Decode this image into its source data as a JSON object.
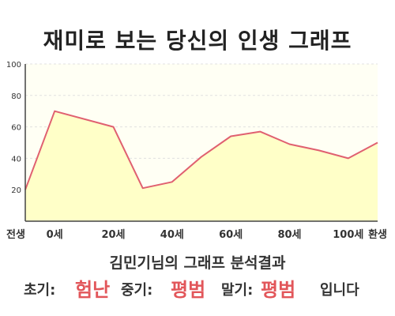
{
  "title": "재미로 보는 당신의 인생 그래프",
  "chart_data": {
    "type": "area",
    "x": [
      "전생",
      "0세",
      "",
      "20세",
      "",
      "40세",
      "",
      "60세",
      "",
      "80세",
      "",
      "100세",
      "환생"
    ],
    "values": [
      20,
      70,
      null,
      60,
      21,
      25,
      41,
      54,
      57,
      49,
      45,
      40,
      50
    ],
    "x_tick_labels": [
      "전생",
      "0세",
      "20세",
      "40세",
      "60세",
      "80세",
      "100세",
      "환생"
    ],
    "y_tick_labels": [
      "20",
      "40",
      "60",
      "80",
      "100"
    ],
    "ylim": [
      0,
      100
    ],
    "grid": true,
    "colors": {
      "fill": "#ffffc8",
      "line": "#e06070",
      "plot_bg": "#fffff4",
      "grid": "#e0e0e0"
    }
  },
  "result": {
    "heading": "김민기님의 그래프 분석결과",
    "early_label": "초기:",
    "early_value": "험난",
    "middle_label": "중기:",
    "middle_value": "평범",
    "late_label": "말기:",
    "late_value": "평범",
    "suffix": "입니다"
  }
}
